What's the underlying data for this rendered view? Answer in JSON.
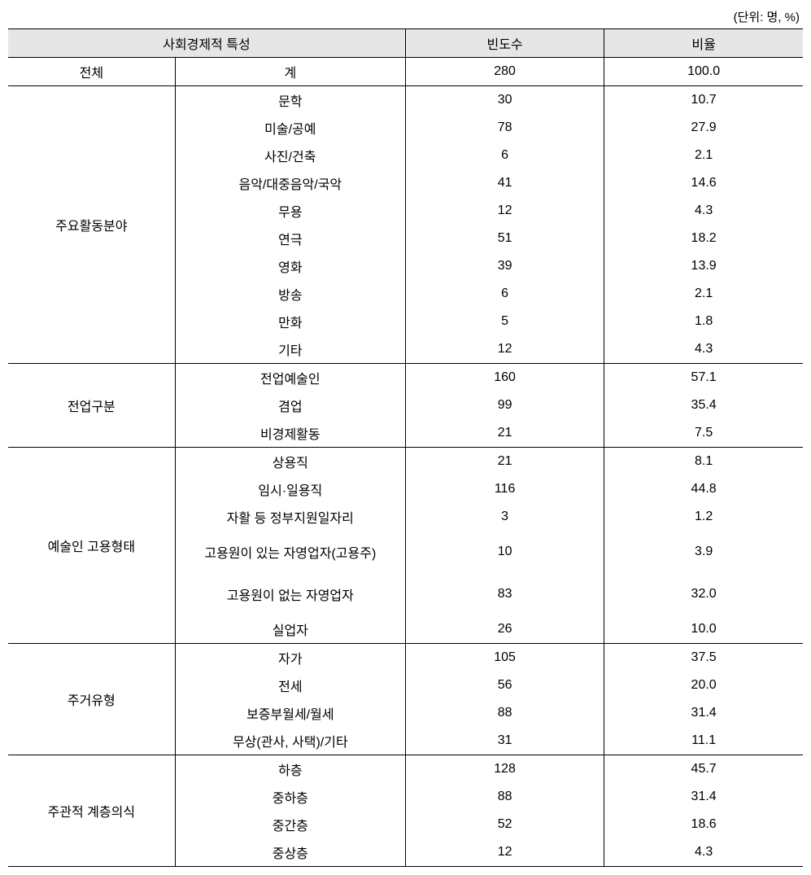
{
  "unit_label": "(단위: 명, %)",
  "headers": {
    "category": "사회경제적 특성",
    "frequency": "빈도수",
    "ratio": "비율"
  },
  "sections": [
    {
      "group": "전체",
      "rows": [
        {
          "label": "계",
          "freq": "280",
          "ratio": "100.0"
        }
      ]
    },
    {
      "group": "주요활동분야",
      "rows": [
        {
          "label": "문학",
          "freq": "30",
          "ratio": "10.7"
        },
        {
          "label": "미술/공예",
          "freq": "78",
          "ratio": "27.9"
        },
        {
          "label": "사진/건축",
          "freq": "6",
          "ratio": "2.1"
        },
        {
          "label": "음악/대중음악/국악",
          "freq": "41",
          "ratio": "14.6"
        },
        {
          "label": "무용",
          "freq": "12",
          "ratio": "4.3"
        },
        {
          "label": "연극",
          "freq": "51",
          "ratio": "18.2"
        },
        {
          "label": "영화",
          "freq": "39",
          "ratio": "13.9"
        },
        {
          "label": "방송",
          "freq": "6",
          "ratio": "2.1"
        },
        {
          "label": "만화",
          "freq": "5",
          "ratio": "1.8"
        },
        {
          "label": "기타",
          "freq": "12",
          "ratio": "4.3"
        }
      ]
    },
    {
      "group": "전업구분",
      "rows": [
        {
          "label": "전업예술인",
          "freq": "160",
          "ratio": "57.1"
        },
        {
          "label": "겸업",
          "freq": "99",
          "ratio": "35.4"
        },
        {
          "label": "비경제활동",
          "freq": "21",
          "ratio": "7.5"
        }
      ]
    },
    {
      "group": "예술인 고용형태",
      "rows": [
        {
          "label": "상용직",
          "freq": "21",
          "ratio": "8.1"
        },
        {
          "label": "임시·일용직",
          "freq": "116",
          "ratio": "44.8"
        },
        {
          "label": "자활 등 정부지원일자리",
          "freq": "3",
          "ratio": "1.2"
        },
        {
          "label": "고용원이 있는 자영업자(고용주)",
          "freq": "10",
          "ratio": "3.9",
          "tall": true
        },
        {
          "label": "고용원이 없는 자영업자",
          "freq": "83",
          "ratio": "32.0",
          "tall": true
        },
        {
          "label": "실업자",
          "freq": "26",
          "ratio": "10.0"
        }
      ]
    },
    {
      "group": "주거유형",
      "rows": [
        {
          "label": "자가",
          "freq": "105",
          "ratio": "37.5"
        },
        {
          "label": "전세",
          "freq": "56",
          "ratio": "20.0"
        },
        {
          "label": "보증부월세/월세",
          "freq": "88",
          "ratio": "31.4"
        },
        {
          "label": "무상(관사, 사택)/기타",
          "freq": "31",
          "ratio": "11.1"
        }
      ]
    },
    {
      "group": "주관적 계층의식",
      "rows": [
        {
          "label": "하층",
          "freq": "128",
          "ratio": "45.7"
        },
        {
          "label": "중하층",
          "freq": "88",
          "ratio": "31.4"
        },
        {
          "label": "중간층",
          "freq": "52",
          "ratio": "18.6"
        },
        {
          "label": "중상층",
          "freq": "12",
          "ratio": "4.3"
        }
      ],
      "final": true
    }
  ],
  "styling": {
    "header_bg": "#e6e6e6",
    "border_color": "#000000",
    "background_color": "#ffffff",
    "font_size": 16,
    "unit_font_size": 15
  }
}
